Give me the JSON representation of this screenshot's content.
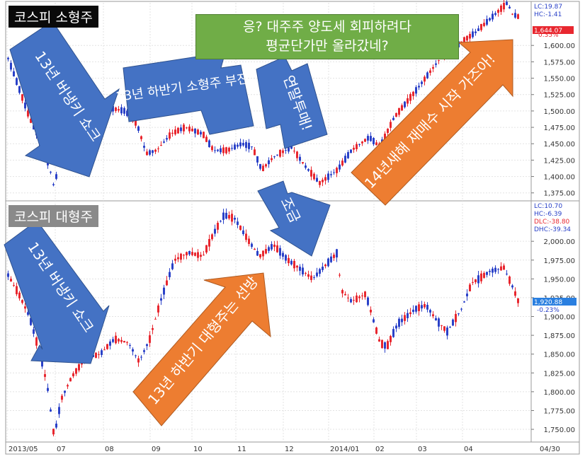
{
  "upper_panel": {
    "title": "코스피 소형주",
    "info": {
      "lc": "LC:19.87",
      "hc": "HC:-1.41",
      "last": "1,644.07",
      "chg": "0.35%"
    }
  },
  "lower_panel": {
    "title": "코스피 대형주",
    "info": {
      "lc": "LC:10.70",
      "hc": "HC:-6.39",
      "dlc": "DLC:-38.80",
      "dhc": "DHC:-39.34",
      "last": "1,920.88",
      "chg": "-0.23%"
    }
  },
  "callout": {
    "line1": "응? 대주주 양도세 회피하려다",
    "line2": "평균단가만 올라갔네?"
  },
  "arrows": {
    "shock_upper": "13년 버냉키 쇼크",
    "small_weak": "13년 하반기 소형주 부진",
    "yearend_sell": "연말투매!",
    "small_rise": "14년새해 재매수 시작 가즈아!",
    "shock_lower": "13년 버냉키 쇼크",
    "large_strong": "13년 하반기 대형주는 선방",
    "a_bit": "조금"
  },
  "x_axis_labels": [
    "2013/05",
    "07",
    "08",
    "09",
    "10",
    "11",
    "12",
    "2014/01",
    "02",
    "03",
    "04",
    "04/30"
  ],
  "chart_data": [
    {
      "type": "candlestick",
      "title": "코스피 소형주",
      "yticks": [
        "1,375.00",
        "1,400.00",
        "1,425.00",
        "1,450.00",
        "1,475.00",
        "1,500.00",
        "1,525.00",
        "1,550.00",
        "1,575.00",
        "1,600.00"
      ],
      "ylim": [
        1365,
        1665
      ],
      "path": [
        [
          0,
          1580
        ],
        [
          12,
          1545
        ],
        [
          30,
          1490
        ],
        [
          50,
          1440
        ],
        [
          62,
          1400
        ],
        [
          66,
          1375
        ],
        [
          72,
          1450
        ],
        [
          90,
          1480
        ],
        [
          115,
          1495
        ],
        [
          140,
          1505
        ],
        [
          165,
          1500
        ],
        [
          182,
          1480
        ],
        [
          195,
          1435
        ],
        [
          210,
          1440
        ],
        [
          230,
          1465
        ],
        [
          250,
          1475
        ],
        [
          275,
          1465
        ],
        [
          290,
          1440
        ],
        [
          310,
          1440
        ],
        [
          330,
          1450
        ],
        [
          345,
          1445
        ],
        [
          358,
          1410
        ],
        [
          375,
          1430
        ],
        [
          400,
          1445
        ],
        [
          420,
          1415
        ],
        [
          440,
          1390
        ],
        [
          465,
          1410
        ],
        [
          485,
          1440
        ],
        [
          510,
          1460
        ],
        [
          525,
          1445
        ],
        [
          545,
          1490
        ],
        [
          575,
          1530
        ],
        [
          610,
          1580
        ],
        [
          640,
          1605
        ],
        [
          660,
          1620
        ],
        [
          685,
          1645
        ],
        [
          705,
          1665
        ],
        [
          712,
          1648
        ],
        [
          720,
          1644
        ]
      ],
      "last_value": 1644.07
    },
    {
      "type": "candlestick",
      "title": "코스피 대형주",
      "yticks": [
        "1,750.00",
        "1,775.00",
        "1,800.00",
        "1,825.00",
        "1,850.00",
        "1,875.00",
        "1,900.00",
        "1,925.00",
        "1,950.00",
        "1,975.00",
        "2,000.00"
      ],
      "ylim": [
        1735,
        2050
      ],
      "path": [
        [
          0,
          1955
        ],
        [
          15,
          1930
        ],
        [
          30,
          1900
        ],
        [
          42,
          1860
        ],
        [
          55,
          1810
        ],
        [
          65,
          1740
        ],
        [
          75,
          1790
        ],
        [
          90,
          1820
        ],
        [
          110,
          1845
        ],
        [
          130,
          1850
        ],
        [
          150,
          1870
        ],
        [
          170,
          1865
        ],
        [
          185,
          1840
        ],
        [
          200,
          1870
        ],
        [
          215,
          1920
        ],
        [
          235,
          1975
        ],
        [
          255,
          1985
        ],
        [
          275,
          1980
        ],
        [
          290,
          2010
        ],
        [
          305,
          2035
        ],
        [
          320,
          2030
        ],
        [
          340,
          2000
        ],
        [
          355,
          1980
        ],
        [
          375,
          1995
        ],
        [
          395,
          1975
        ],
        [
          410,
          1965
        ],
        [
          430,
          1950
        ],
        [
          450,
          1970
        ],
        [
          465,
          1985
        ],
        [
          470,
          1935
        ],
        [
          485,
          1920
        ],
        [
          505,
          1930
        ],
        [
          525,
          1865
        ],
        [
          535,
          1860
        ],
        [
          550,
          1890
        ],
        [
          575,
          1910
        ],
        [
          590,
          1915
        ],
        [
          605,
          1895
        ],
        [
          620,
          1880
        ],
        [
          640,
          1910
        ],
        [
          655,
          1945
        ],
        [
          665,
          1950
        ],
        [
          680,
          1960
        ],
        [
          700,
          1965
        ],
        [
          712,
          1940
        ],
        [
          720,
          1921
        ]
      ],
      "last_value": 1920.88
    }
  ],
  "colors": {
    "up": "#e8272f",
    "down": "#2a41c8",
    "blue_arrow": "#4472c4",
    "orange_arrow": "#ed7d31",
    "callout": "#70ad47",
    "highlight_small": "#e8272f",
    "highlight_large": "#2a7fe0"
  }
}
